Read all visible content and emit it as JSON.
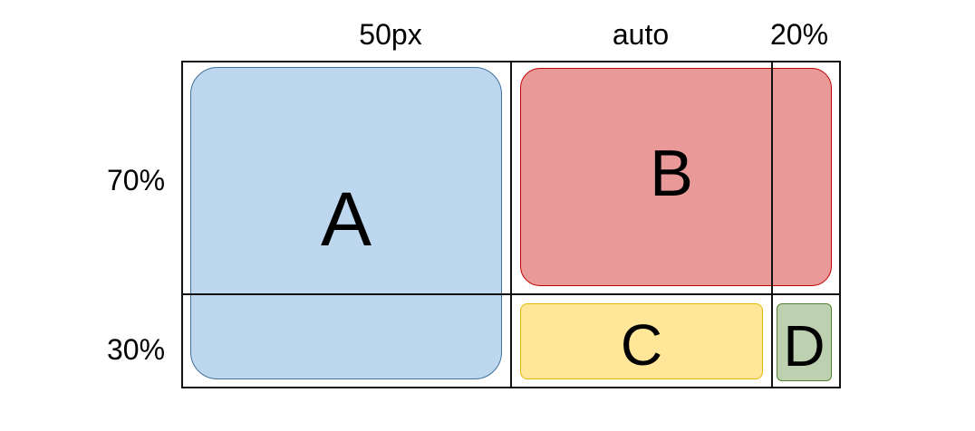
{
  "columns": {
    "col1": "50px",
    "col2": "auto",
    "col3": "20%"
  },
  "rows": {
    "row1": "70%",
    "row2": "30%"
  },
  "items": {
    "a": {
      "label": "A",
      "fill": "#bdd7ee",
      "border": "#41719c"
    },
    "b": {
      "label": "B",
      "fill": "#ea9999",
      "border": "#c00000"
    },
    "c": {
      "label": "C",
      "fill": "#ffe699",
      "border": "#e6b800"
    },
    "d": {
      "label": "D",
      "fill": "#bdd0b0",
      "border": "#548235"
    }
  }
}
